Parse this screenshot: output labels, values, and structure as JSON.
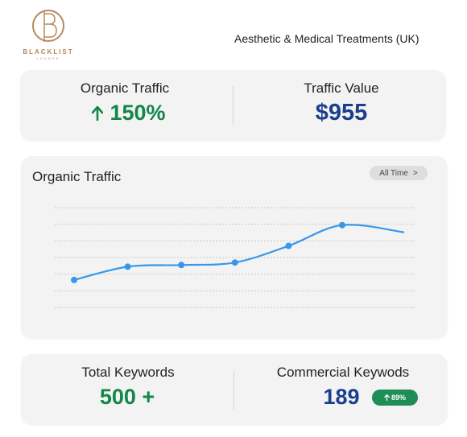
{
  "brand": {
    "name": "BLACKLIST",
    "tagline": "LOUNGE"
  },
  "header": {
    "subtitle": "Aesthetic & Medical Treatments (UK)"
  },
  "summary": {
    "organic_traffic": {
      "label": "Organic Traffic",
      "arrow_icon": "arrow-up-icon",
      "value": "150%"
    },
    "traffic_value": {
      "label": "Traffic Value",
      "value": "$955"
    }
  },
  "traffic_chart": {
    "title": "Organic Traffic",
    "range_label": "All Time",
    "range_chevron": ">"
  },
  "keywords": {
    "total": {
      "label": "Total Keywords",
      "value": "500 +"
    },
    "commercial": {
      "label": "Commercial Keywods",
      "value": "189",
      "badge_icon": "arrow-up-icon",
      "badge": "89%"
    }
  },
  "colors": {
    "accent_green": "#14864a",
    "accent_blue": "#1a3f8c",
    "line": "#3897ea",
    "brand_gold": "#b58a5a"
  },
  "chart_data": {
    "type": "line",
    "title": "Organic Traffic",
    "xlabel": "",
    "ylabel": "",
    "x": [
      1,
      2,
      3,
      4,
      5,
      6
    ],
    "series": [
      {
        "values": [
          3.3,
          4.9,
          5.1,
          5.4,
          7.4,
          9.9
        ]
      }
    ],
    "ylim": [
      0,
      12
    ],
    "grid": true
  }
}
